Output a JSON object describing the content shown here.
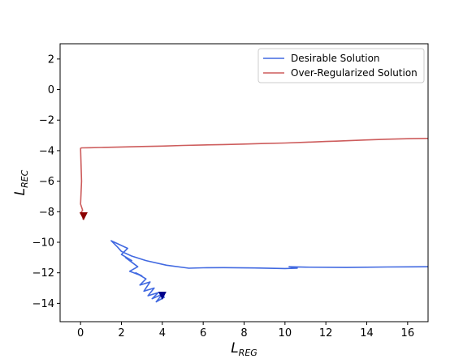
{
  "chart_data": {
    "type": "line",
    "title": "",
    "xlabel": {
      "main": "L",
      "sub": "REG"
    },
    "ylabel": {
      "main": "L",
      "sub": "REC"
    },
    "xlim": [
      -1.0,
      17.0
    ],
    "ylim": [
      -15.2,
      3.0
    ],
    "xticks": [
      0,
      2,
      4,
      6,
      8,
      10,
      12,
      14,
      16
    ],
    "yticks": [
      2,
      0,
      -2,
      -4,
      -6,
      -8,
      -10,
      -12,
      -14
    ],
    "xtick_labels": [
      "0",
      "2",
      "4",
      "6",
      "8",
      "10",
      "12",
      "14",
      "16"
    ],
    "ytick_labels": [
      "2",
      "0",
      "−2",
      "−4",
      "−6",
      "−8",
      "−10",
      "−12",
      "−14"
    ],
    "legend_position": "top-right",
    "series": [
      {
        "name": "Desirable Solution",
        "color": "#4169e1",
        "x": [
          17.0,
          15.0,
          13.0,
          11.0,
          10.2,
          10.6,
          10.0,
          8.5,
          7.0,
          6.0,
          5.3,
          4.2,
          3.2,
          2.5,
          2.0,
          1.8,
          1.5,
          2.3,
          2.0,
          2.5,
          2.2,
          2.8,
          2.4,
          3.0,
          2.7,
          3.2,
          2.9,
          3.4,
          3.1,
          3.6,
          3.3,
          3.8,
          3.5,
          4.0,
          3.7,
          4.1,
          3.9
        ],
        "y": [
          -11.6,
          -11.62,
          -11.65,
          -11.63,
          -11.6,
          -11.7,
          -11.72,
          -11.68,
          -11.66,
          -11.67,
          -11.7,
          -11.5,
          -11.2,
          -10.9,
          -10.6,
          -10.3,
          -9.9,
          -10.4,
          -10.8,
          -11.2,
          -11.0,
          -11.6,
          -11.9,
          -12.2,
          -12.0,
          -12.4,
          -12.8,
          -12.6,
          -13.2,
          -13.0,
          -13.5,
          -13.3,
          -13.7,
          -13.4,
          -13.9,
          -13.6,
          -13.5
        ]
      },
      {
        "name": "Over-Regularized Solution",
        "color": "#cd5c5c",
        "x": [
          17.0,
          16.0,
          15.0,
          14.0,
          13.0,
          12.5,
          12.0,
          11.0,
          10.0,
          9.0,
          8.0,
          7.0,
          6.0,
          5.0,
          4.0,
          3.0,
          2.0,
          1.0,
          0.5,
          0.05,
          0.0,
          0.05,
          0.0,
          0.1,
          0.0,
          0.1,
          0.05,
          0.15,
          0.1
        ],
        "y": [
          -3.2,
          -3.22,
          -3.25,
          -3.3,
          -3.35,
          -3.38,
          -3.4,
          -3.45,
          -3.5,
          -3.53,
          -3.57,
          -3.6,
          -3.63,
          -3.66,
          -3.7,
          -3.73,
          -3.76,
          -3.79,
          -3.81,
          -3.82,
          -3.85,
          -6.0,
          -7.5,
          -7.9,
          -8.1,
          -8.3,
          -8.2,
          -8.4,
          -8.5
        ]
      }
    ],
    "markers": [
      {
        "series": "Desirable Solution",
        "shape": "triangle-down",
        "color": "#00008b",
        "x": 4.0,
        "y": -13.5
      },
      {
        "series": "Over-Regularized Solution",
        "shape": "triangle-down",
        "color": "#8b0000",
        "x": 0.15,
        "y": -8.3
      }
    ]
  }
}
